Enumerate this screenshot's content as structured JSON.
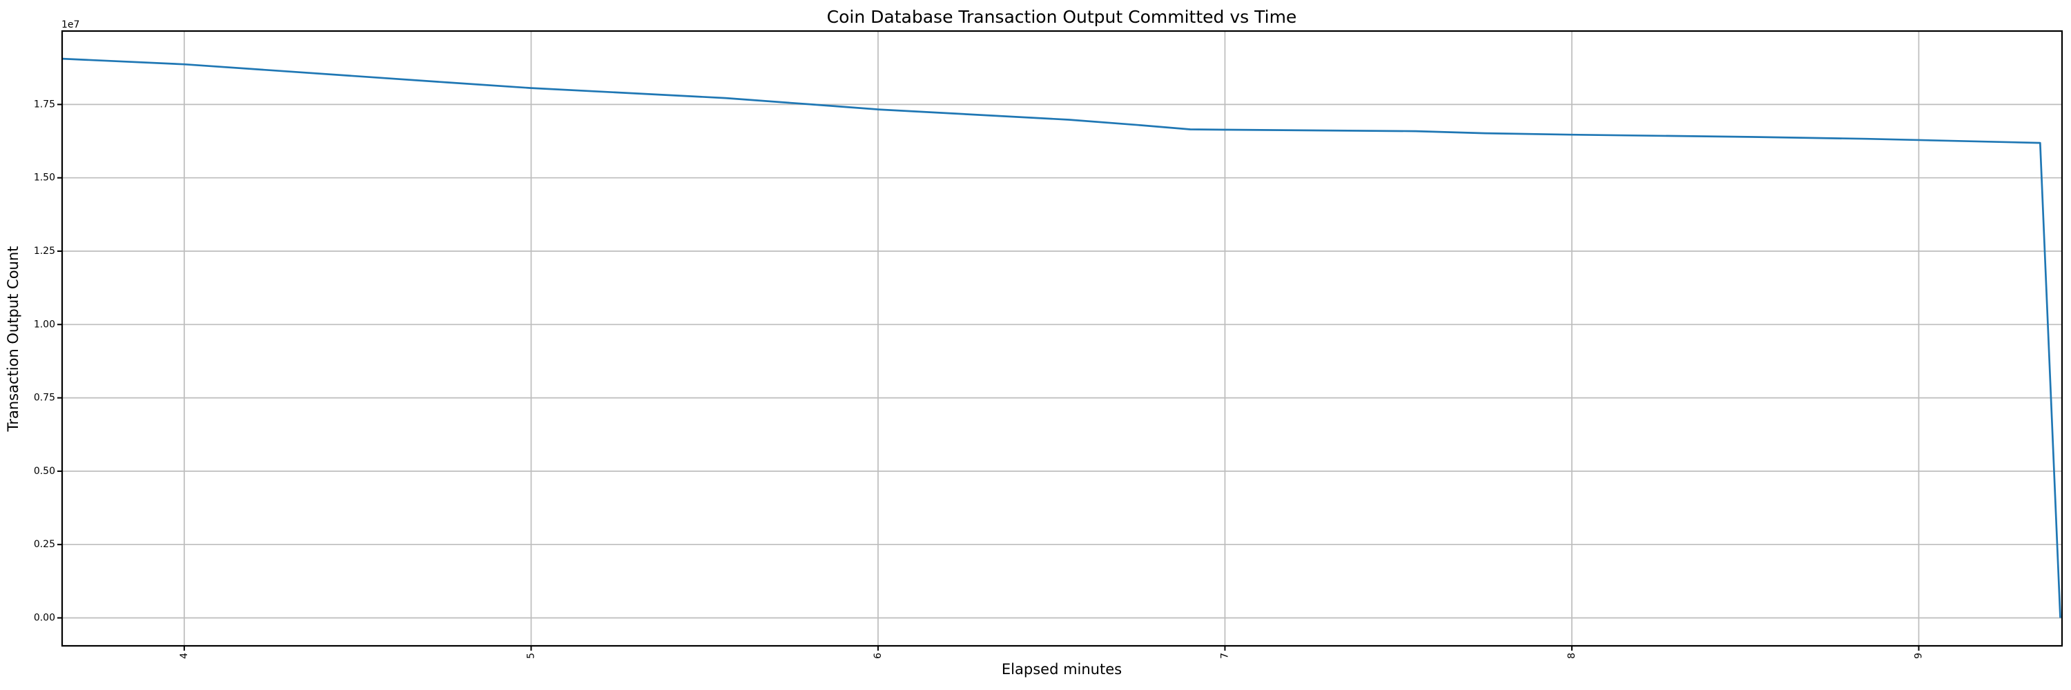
{
  "chart_data": {
    "type": "line",
    "title": "Coin Database Transaction Output Committed vs Time",
    "xlabel": "Elapsed minutes",
    "ylabel": "Transaction Output Count",
    "y_axis_offset_label": "1e7",
    "x_ticks": [
      4,
      5,
      6,
      7,
      8,
      9
    ],
    "x_tick_labels": [
      "4",
      "5",
      "6",
      "7",
      "8",
      "9"
    ],
    "x_tick_rotation_deg": 90,
    "y_ticks": [
      0,
      2500000,
      5000000,
      7500000,
      10000000,
      12500000,
      15000000,
      17500000
    ],
    "y_tick_labels": [
      "0.00",
      "0.25",
      "0.50",
      "0.75",
      "1.00",
      "1.25",
      "1.50",
      "1.75"
    ],
    "xlim": [
      3.648,
      9.413
    ],
    "ylim": [
      -952500,
      20002500
    ],
    "grid": true,
    "legend_position": "none",
    "line_color": "#1f77b4",
    "grid_color": "#bdbdbd",
    "series": [
      {
        "points": [
          [
            3.648,
            19060000
          ],
          [
            4.0,
            18870000
          ],
          [
            4.76,
            18250000
          ],
          [
            5.0,
            18060000
          ],
          [
            5.56,
            17720000
          ],
          [
            5.81,
            17500000
          ],
          [
            6.0,
            17330000
          ],
          [
            6.55,
            16980000
          ],
          [
            6.75,
            16800000
          ],
          [
            6.9,
            16650000
          ],
          [
            7.0,
            16640000
          ],
          [
            7.55,
            16590000
          ],
          [
            7.75,
            16520000
          ],
          [
            8.0,
            16470000
          ],
          [
            8.54,
            16390000
          ],
          [
            8.85,
            16330000
          ],
          [
            9.35,
            16190000
          ],
          [
            9.408,
            0
          ]
        ]
      }
    ]
  }
}
